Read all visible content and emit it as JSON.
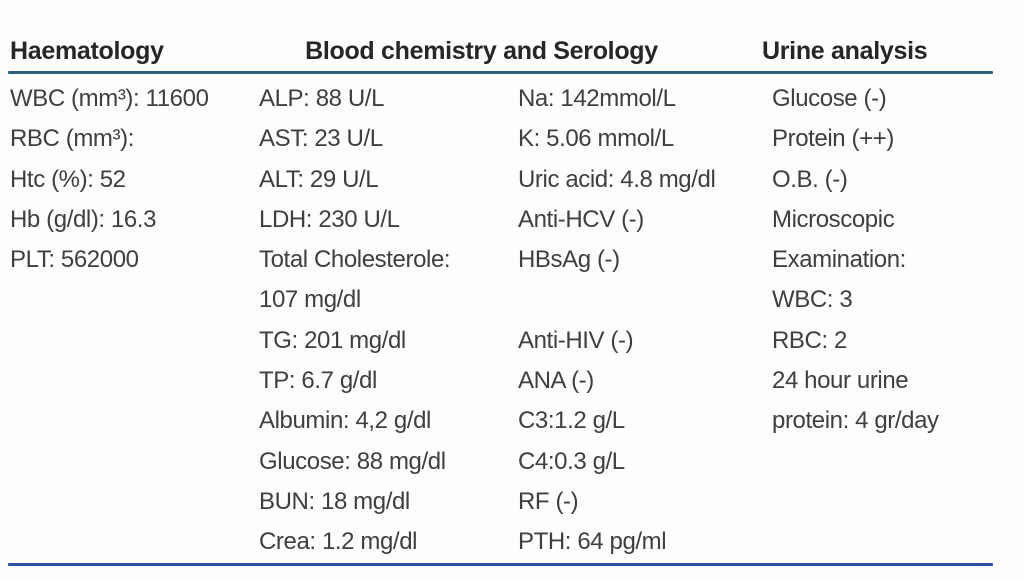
{
  "colors": {
    "background": "#fdfdfc",
    "header_rule": "#2e5f7e",
    "bottom_rule": "#2f4fa7",
    "text": "#3f3f3f",
    "heading_text": "#262626"
  },
  "table": {
    "headers": [
      {
        "label": "Haematology"
      },
      {
        "label": "Blood chemistry and Serology"
      },
      {
        "label": "Urine analysis"
      }
    ],
    "columns": [
      [
        "WBC (mm³): 11600",
        "RBC (mm³):",
        "Htc (%): 52",
        "Hb (g/dl): 16.3",
        "PLT: 562000"
      ],
      [
        "ALP: 88 U/L",
        "AST: 23 U/L",
        "ALT: 29 U/L",
        "LDH: 230 U/L",
        "Total Cholesterole:",
        "107 mg/dl",
        "TG: 201 mg/dl",
        "TP: 6.7 g/dl",
        "Albumin: 4,2 g/dl",
        "Glucose: 88 mg/dl",
        "BUN: 18 mg/dl",
        "Crea: 1.2 mg/dl"
      ],
      [
        "Na: 142mmol/L",
        "K: 5.06 mmol/L",
        "Uric acid: 4.8 mg/dl",
        "Anti-HCV (-)",
        "HBsAg (-)",
        "",
        "Anti-HIV (-)",
        "ANA (-)",
        "C3:1.2 g/L",
        "C4:0.3 g/L",
        "RF (-)",
        "PTH: 64 pg/ml"
      ],
      [
        "Glucose (-)",
        "Protein (++)",
        "O.B. (-)",
        "Microscopic",
        "Examination:",
        "WBC: 3",
        "RBC: 2",
        "24 hour urine",
        "protein: 4 gr/day"
      ]
    ]
  }
}
